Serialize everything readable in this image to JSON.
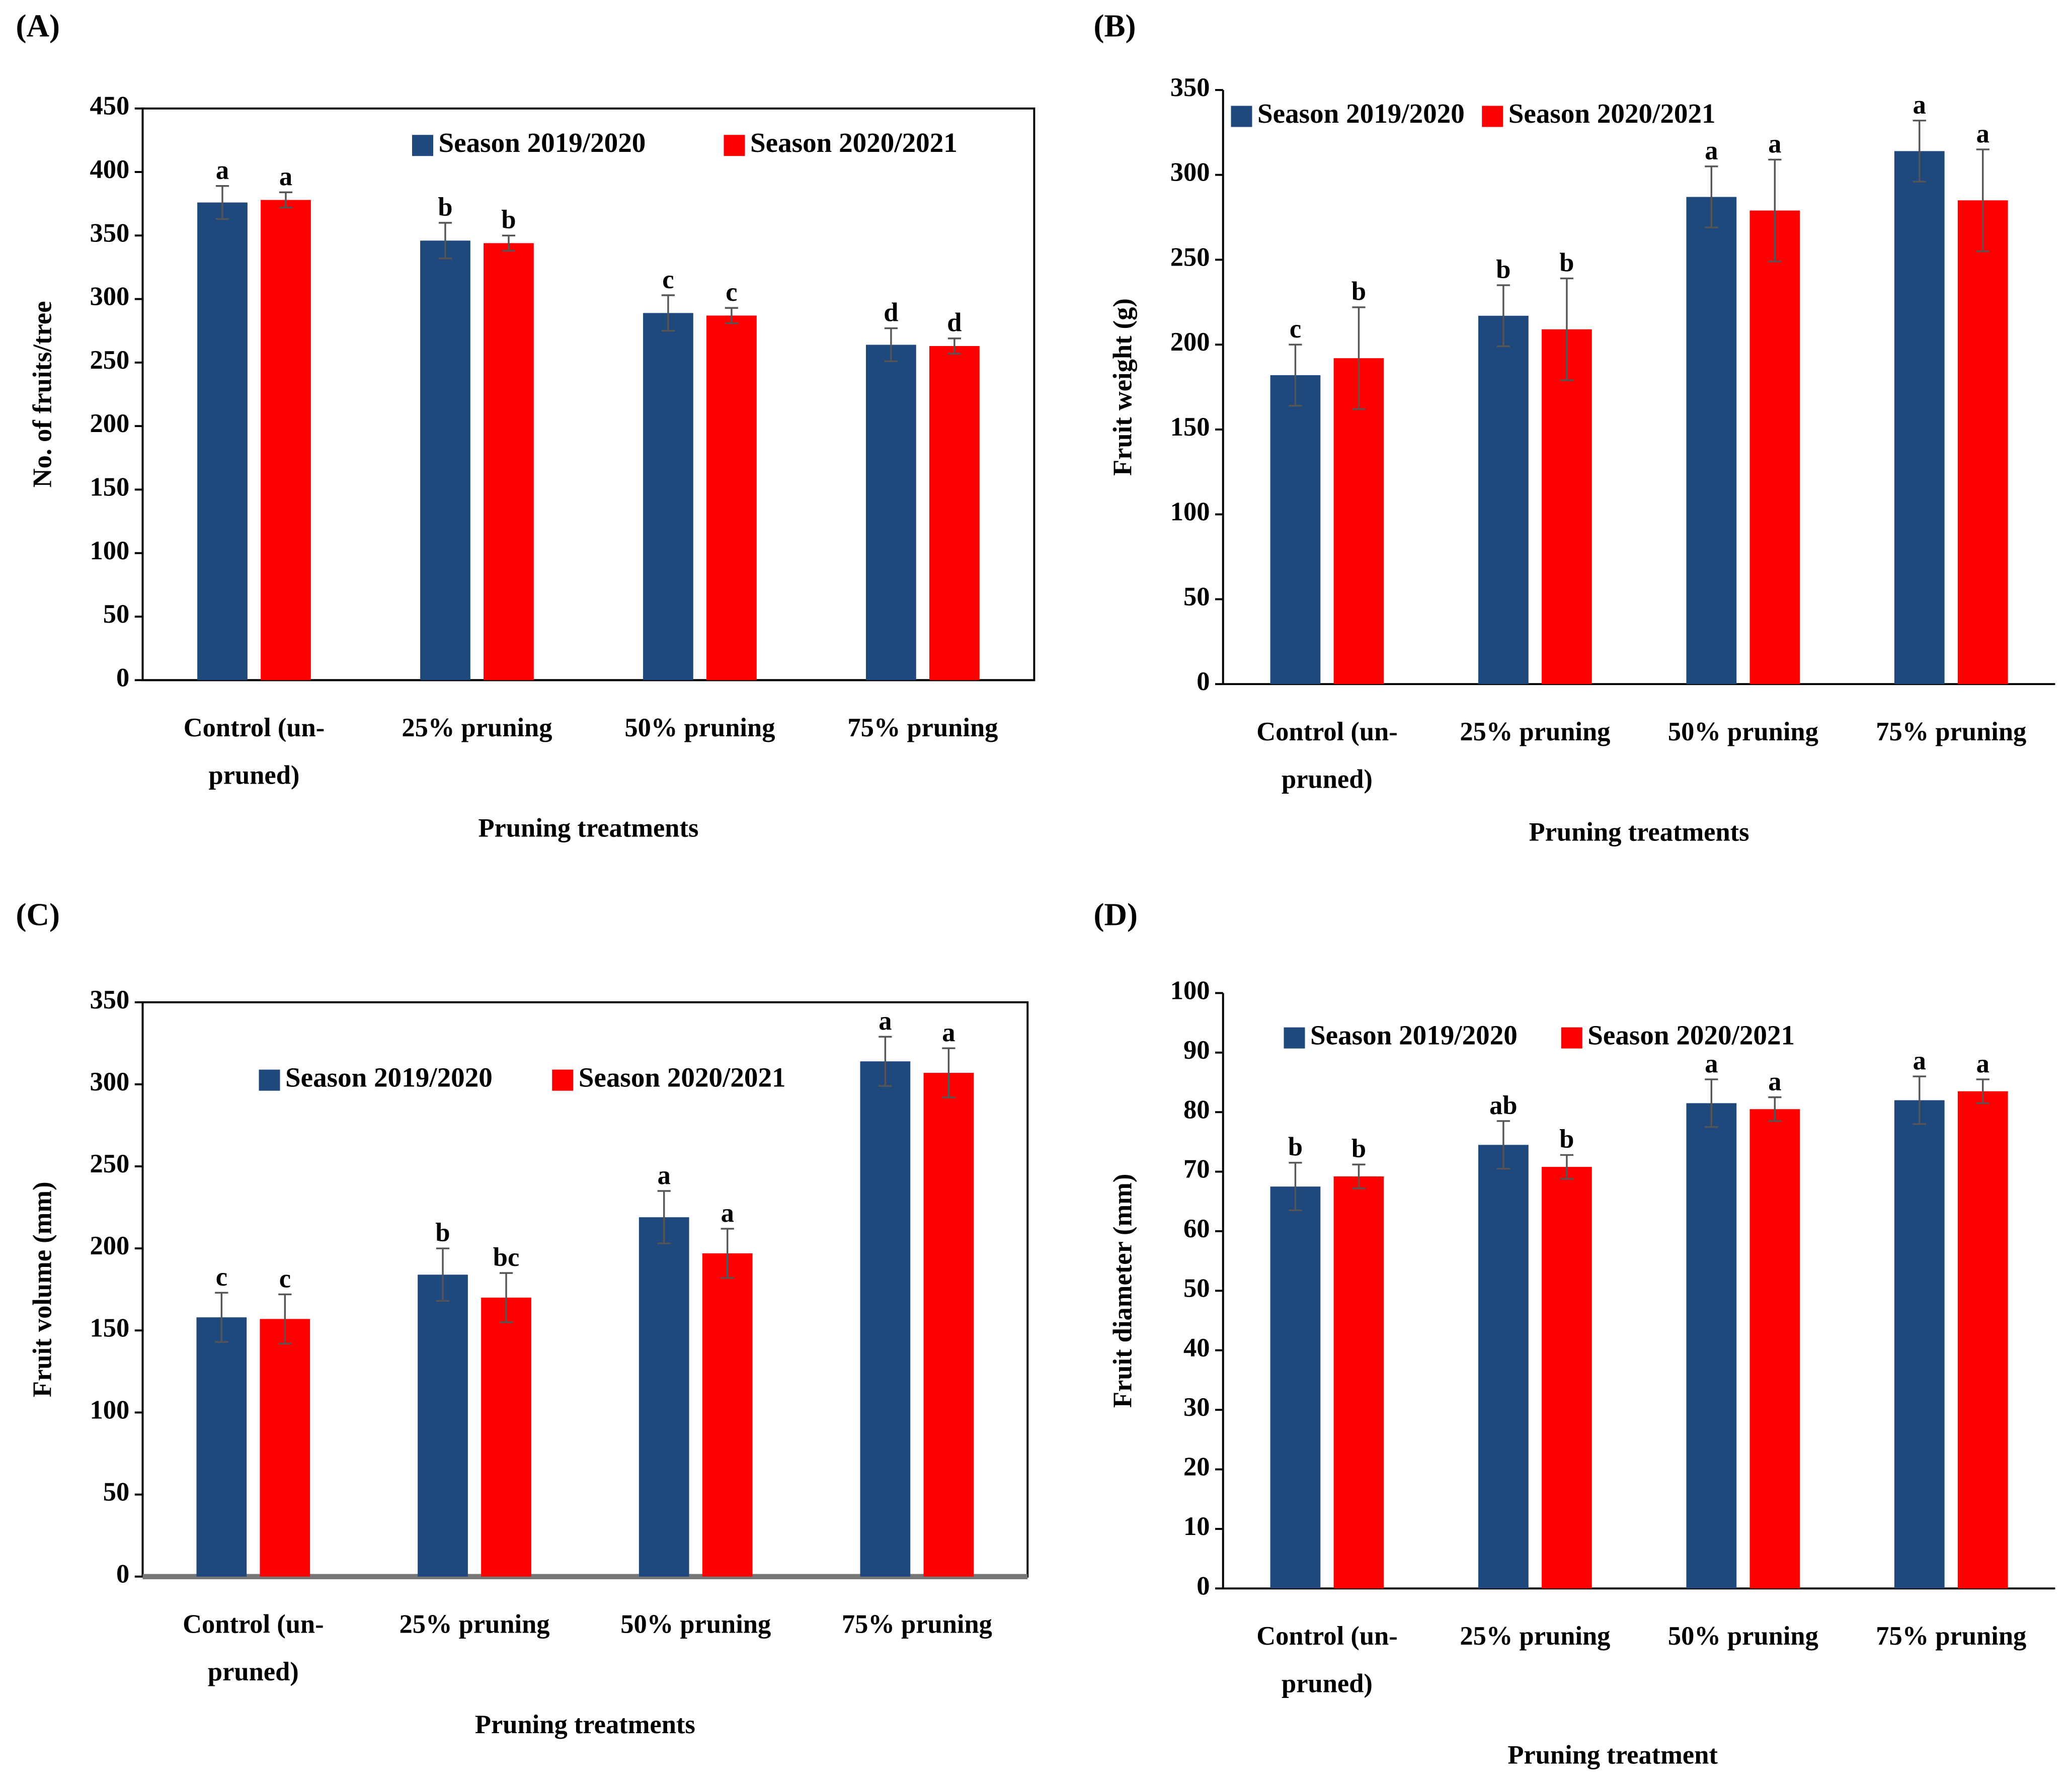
{
  "chart_data": [
    {
      "type": "bar",
      "panel": "(A)",
      "y_label": "No. of fruits/tree",
      "x_label": "Pruning treatments",
      "categories": [
        "Control (un-pruned)",
        "25% pruning",
        "50% pruning",
        "75% pruning"
      ],
      "ylim": [
        0,
        450
      ],
      "yticks": [
        0,
        50,
        100,
        150,
        200,
        250,
        300,
        350,
        400,
        450
      ],
      "series": [
        {
          "name": "Season 2019/2020",
          "color": "#1f497d",
          "values": [
            376,
            346,
            289,
            264
          ],
          "errors": [
            13,
            14,
            14,
            13
          ],
          "letters": [
            "a",
            "b",
            "c",
            "d"
          ]
        },
        {
          "name": "Season 2020/2021",
          "color": "#ff0000",
          "values": [
            378,
            344,
            287,
            263
          ],
          "errors": [
            6,
            6,
            6,
            6
          ],
          "letters": [
            "a",
            "b",
            "c",
            "d"
          ]
        }
      ]
    },
    {
      "type": "bar",
      "panel": "(B)",
      "y_label": "Fruit weight (g)",
      "x_label": "Pruning treatments",
      "categories": [
        "Control (un-pruned)",
        "25% pruning",
        "50% pruning",
        "75% pruning"
      ],
      "ylim": [
        0,
        350
      ],
      "yticks": [
        0,
        50,
        100,
        150,
        200,
        250,
        300,
        350
      ],
      "series": [
        {
          "name": "Season 2019/2020",
          "color": "#1f497d",
          "values": [
            182,
            217,
            287,
            314
          ],
          "errors": [
            18,
            18,
            18,
            18
          ],
          "letters": [
            "c",
            "b",
            "a",
            "a"
          ]
        },
        {
          "name": "Season 2020/2021",
          "color": "#ff0000",
          "values": [
            192,
            209,
            279,
            285
          ],
          "errors": [
            30,
            30,
            30,
            30
          ],
          "letters": [
            "b",
            "b",
            "a",
            "a"
          ]
        }
      ]
    },
    {
      "type": "bar",
      "panel": "(C)",
      "y_label": "Fruit volume (mm)",
      "x_label": "Pruning treatments",
      "categories": [
        "Control (un-pruned)",
        "25% pruning",
        "50% pruning",
        "75% pruning"
      ],
      "ylim": [
        0,
        350
      ],
      "yticks": [
        0,
        50,
        100,
        150,
        200,
        250,
        300,
        350
      ],
      "series": [
        {
          "name": "Season 2019/2020",
          "color": "#1f497d",
          "values": [
            158,
            184,
            219,
            314
          ],
          "errors": [
            15,
            16,
            16,
            15
          ],
          "letters": [
            "c",
            "b",
            "a",
            "a"
          ]
        },
        {
          "name": "Season 2020/2021",
          "color": "#ff0000",
          "values": [
            157,
            170,
            197,
            307
          ],
          "errors": [
            15,
            15,
            15,
            15
          ],
          "letters": [
            "c",
            "bc",
            "a",
            "a"
          ]
        }
      ]
    },
    {
      "type": "bar",
      "panel": "(D)",
      "y_label": "Fruit diameter (mm)",
      "x_label": "Pruning treatment",
      "categories": [
        "Control (un-pruned)",
        "25% pruning",
        "50% pruning",
        "75% pruning"
      ],
      "ylim": [
        0,
        100
      ],
      "yticks": [
        0,
        10,
        20,
        30,
        40,
        50,
        60,
        70,
        80,
        90,
        100
      ],
      "series": [
        {
          "name": "Season 2019/2020",
          "color": "#1f497d",
          "values": [
            67.5,
            74.5,
            81.5,
            82
          ],
          "errors": [
            4,
            4,
            4,
            4
          ],
          "letters": [
            "b",
            "ab",
            "a",
            "a"
          ]
        },
        {
          "name": "Season 2020/2021",
          "color": "#ff0000",
          "values": [
            69.2,
            70.8,
            80.5,
            83.5
          ],
          "errors": [
            2,
            2,
            2,
            2
          ],
          "letters": [
            "b",
            "b",
            "a",
            "a"
          ]
        }
      ]
    }
  ]
}
